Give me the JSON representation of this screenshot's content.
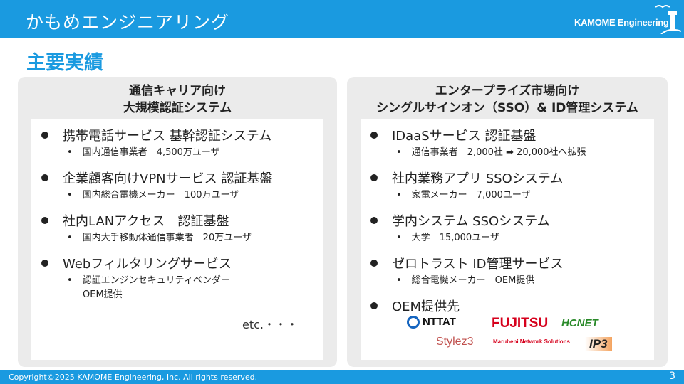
{
  "header": {
    "title": "かもめエンジニアリング",
    "logo_text": "KAMOME Engineering"
  },
  "page_title": "主要実績",
  "left": {
    "heading": [
      "通信キャリア向け",
      "大規模認証システム"
    ],
    "items": [
      {
        "label": "携帯電話サービス 基幹認証システム",
        "subs": [
          "国内通信事業者　4,500万ユーザ"
        ]
      },
      {
        "label": "企業顧客向けVPNサービス 認証基盤",
        "subs": [
          "国内総合電機メーカー　100万ユーザ"
        ]
      },
      {
        "label": "社内LANアクセス　認証基盤",
        "subs": [
          "国内大手移動体通信事業者　20万ユーザ"
        ]
      },
      {
        "label": "Webフィルタリングサービス",
        "subs": [
          "認証エンジンセキュリティベンダー",
          "OEM提供"
        ]
      }
    ],
    "etc": "etc.・・・"
  },
  "right": {
    "heading": [
      "エンタープライズ市場向け",
      "シングルサインオン（SSO）& ID管理システム"
    ],
    "items": [
      {
        "label": "IDaaSサービス 認証基盤",
        "subs": [
          "通信事業者　2,000社 ➡ 20,000社へ拡張"
        ]
      },
      {
        "label": "社内業務アプリ SSOシステム",
        "subs": [
          "家電メーカー　7,000ユーザ"
        ]
      },
      {
        "label": "学内システム SSOシステム",
        "subs": [
          "大学　15,000ユーザ"
        ]
      },
      {
        "label": "ゼロトラスト ID管理サービス",
        "subs": [
          "総合電機メーカー　OEM提供"
        ]
      },
      {
        "label": "OEM提供先"
      }
    ],
    "oem_logos": [
      "NTTAT",
      "FUJITSU",
      "HCNET",
      "Stylez3",
      "Marubeni Network Solutions",
      "IP3"
    ]
  },
  "footer": {
    "copyright": "Copyright©2025 KAMOME Engineering, Inc. All rights reserved.",
    "page": "3"
  },
  "colors": {
    "brand": "#1a9ae0",
    "panel": "#ebebeb"
  }
}
